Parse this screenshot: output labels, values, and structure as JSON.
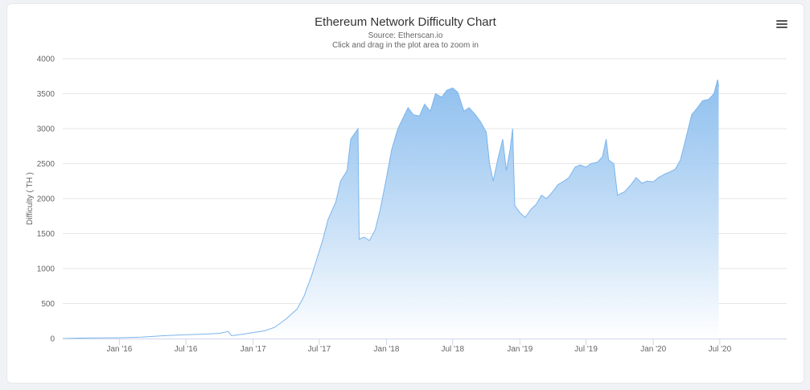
{
  "chart_data": {
    "type": "area",
    "title": "Ethereum Network Difficulty Chart",
    "subtitle": "Source: Etherscan.io",
    "instruction": "Click and drag in the plot area to zoom in",
    "xlabel": "",
    "ylabel": "Difficulty ( TH )",
    "ylim": [
      0,
      4000
    ],
    "y_ticks": [
      0,
      500,
      1000,
      1500,
      2000,
      2500,
      3000,
      3500,
      4000
    ],
    "x_ticks": [
      {
        "date": "2016-01-01",
        "label": "Jan '16"
      },
      {
        "date": "2016-07-01",
        "label": "Jul '16"
      },
      {
        "date": "2017-01-01",
        "label": "Jan '17"
      },
      {
        "date": "2017-07-01",
        "label": "Jul '17"
      },
      {
        "date": "2018-01-01",
        "label": "Jan '18"
      },
      {
        "date": "2018-07-01",
        "label": "Jul '18"
      },
      {
        "date": "2019-01-01",
        "label": "Jan '19"
      },
      {
        "date": "2019-07-01",
        "label": "Jul '19"
      },
      {
        "date": "2020-01-01",
        "label": "Jan '20"
      },
      {
        "date": "2020-07-01",
        "label": "Jul '20"
      }
    ],
    "grid": true,
    "legend": "none",
    "colors": {
      "line": "#7cb5ec",
      "fill_top": "#7cb5ec",
      "fill_bottom": "#ffffff",
      "grid": "#e6e6e6"
    },
    "series": [
      {
        "values": [
          [
            "2015-07-30",
            0
          ],
          [
            "2015-09-01",
            5
          ],
          [
            "2015-10-15",
            8
          ],
          [
            "2016-01-01",
            12
          ],
          [
            "2016-03-01",
            20
          ],
          [
            "2016-05-01",
            40
          ],
          [
            "2016-07-01",
            55
          ],
          [
            "2016-08-15",
            62
          ],
          [
            "2016-10-01",
            75
          ],
          [
            "2016-10-25",
            100
          ],
          [
            "2016-11-03",
            40
          ],
          [
            "2016-12-01",
            60
          ],
          [
            "2017-01-01",
            85
          ],
          [
            "2017-02-01",
            110
          ],
          [
            "2017-03-01",
            160
          ],
          [
            "2017-04-01",
            280
          ],
          [
            "2017-05-01",
            420
          ],
          [
            "2017-05-20",
            600
          ],
          [
            "2017-06-10",
            900
          ],
          [
            "2017-06-25",
            1150
          ],
          [
            "2017-07-10",
            1400
          ],
          [
            "2017-07-25",
            1700
          ],
          [
            "2017-08-15",
            1950
          ],
          [
            "2017-08-28",
            2250
          ],
          [
            "2017-09-15",
            2400
          ],
          [
            "2017-09-25",
            2850
          ],
          [
            "2017-10-15",
            3000
          ],
          [
            "2017-10-18",
            1420
          ],
          [
            "2017-11-01",
            1450
          ],
          [
            "2017-11-15",
            1400
          ],
          [
            "2017-12-01",
            1550
          ],
          [
            "2017-12-15",
            1850
          ],
          [
            "2018-01-01",
            2300
          ],
          [
            "2018-01-15",
            2700
          ],
          [
            "2018-02-01",
            3000
          ],
          [
            "2018-02-15",
            3150
          ],
          [
            "2018-03-01",
            3300
          ],
          [
            "2018-03-15",
            3200
          ],
          [
            "2018-04-01",
            3180
          ],
          [
            "2018-04-15",
            3350
          ],
          [
            "2018-05-01",
            3250
          ],
          [
            "2018-05-15",
            3500
          ],
          [
            "2018-06-01",
            3450
          ],
          [
            "2018-06-15",
            3550
          ],
          [
            "2018-07-01",
            3580
          ],
          [
            "2018-07-15",
            3520
          ],
          [
            "2018-08-01",
            3250
          ],
          [
            "2018-08-15",
            3300
          ],
          [
            "2018-09-01",
            3200
          ],
          [
            "2018-09-15",
            3100
          ],
          [
            "2018-10-01",
            2950
          ],
          [
            "2018-10-10",
            2500
          ],
          [
            "2018-10-20",
            2250
          ],
          [
            "2018-11-01",
            2550
          ],
          [
            "2018-11-15",
            2850
          ],
          [
            "2018-11-25",
            2400
          ],
          [
            "2018-12-05",
            2700
          ],
          [
            "2018-12-12",
            3000
          ],
          [
            "2018-12-18",
            1900
          ],
          [
            "2019-01-01",
            1800
          ],
          [
            "2019-01-15",
            1730
          ],
          [
            "2019-02-01",
            1850
          ],
          [
            "2019-02-15",
            1920
          ],
          [
            "2019-03-01",
            2050
          ],
          [
            "2019-03-15",
            2000
          ],
          [
            "2019-04-01",
            2100
          ],
          [
            "2019-04-15",
            2200
          ],
          [
            "2019-05-01",
            2250
          ],
          [
            "2019-05-15",
            2300
          ],
          [
            "2019-06-01",
            2450
          ],
          [
            "2019-06-15",
            2480
          ],
          [
            "2019-07-01",
            2450
          ],
          [
            "2019-07-15",
            2500
          ],
          [
            "2019-08-01",
            2520
          ],
          [
            "2019-08-15",
            2600
          ],
          [
            "2019-08-25",
            2850
          ],
          [
            "2019-09-01",
            2550
          ],
          [
            "2019-09-15",
            2500
          ],
          [
            "2019-09-25",
            2050
          ],
          [
            "2019-10-15",
            2100
          ],
          [
            "2019-11-01",
            2200
          ],
          [
            "2019-11-15",
            2300
          ],
          [
            "2019-12-01",
            2220
          ],
          [
            "2019-12-15",
            2250
          ],
          [
            "2020-01-01",
            2240
          ],
          [
            "2020-01-15",
            2300
          ],
          [
            "2020-02-01",
            2350
          ],
          [
            "2020-02-15",
            2380
          ],
          [
            "2020-03-01",
            2420
          ],
          [
            "2020-03-15",
            2550
          ],
          [
            "2020-04-01",
            2900
          ],
          [
            "2020-04-15",
            3200
          ],
          [
            "2020-05-01",
            3300
          ],
          [
            "2020-05-15",
            3400
          ],
          [
            "2020-06-01",
            3420
          ],
          [
            "2020-06-15",
            3500
          ],
          [
            "2020-06-25",
            3700
          ],
          [
            "2020-06-28",
            3600
          ]
        ]
      }
    ]
  },
  "toolbar": {
    "menu_icon": "hamburger-menu-icon"
  }
}
